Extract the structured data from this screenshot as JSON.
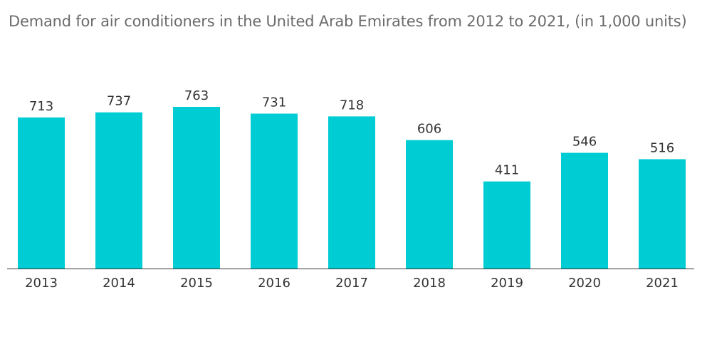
{
  "chart_data": {
    "type": "bar",
    "title": "Demand for air conditioners in the United Arab Emirates from 2012 to 2021, (in 1,000 units)",
    "xlabel": "",
    "ylabel": "",
    "categories": [
      "2013",
      "2014",
      "2015",
      "2016",
      "2017",
      "2018",
      "2019",
      "2020",
      "2021"
    ],
    "values": [
      713,
      737,
      763,
      731,
      718,
      606,
      411,
      546,
      516
    ],
    "data_labels": [
      "713",
      "737",
      "763",
      "731",
      "718",
      "606",
      "411",
      "546",
      "516"
    ],
    "ylim": [
      0,
      763
    ],
    "grid": false,
    "legend": "none",
    "bar_color": "#00ccd4",
    "baseline_color": "#333333"
  }
}
